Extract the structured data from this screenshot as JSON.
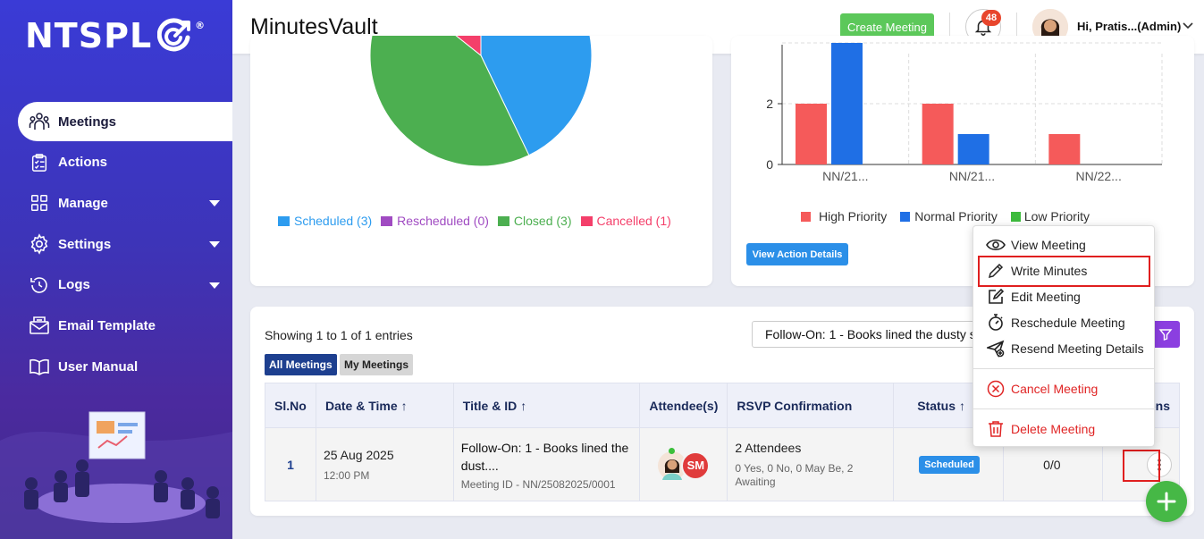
{
  "brand": {
    "logo_text": "NTSPL",
    "reg_mark": "®"
  },
  "sidebar": {
    "items": [
      {
        "label": "Meetings",
        "icon": "meetings-icon",
        "active": true
      },
      {
        "label": "Actions",
        "icon": "clipboard-icon"
      },
      {
        "label": "Manage",
        "icon": "grid-icon",
        "has_caret": true
      },
      {
        "label": "Settings",
        "icon": "gear-icon",
        "has_caret": true
      },
      {
        "label": "Logs",
        "icon": "history-icon",
        "has_caret": true
      },
      {
        "label": "Email Template",
        "icon": "envelope-icon"
      },
      {
        "label": "User Manual",
        "icon": "book-icon"
      }
    ]
  },
  "header": {
    "title": "MinutesVault",
    "create_label": "Create Meeting",
    "notifications_count": "48",
    "user_label": "Hi, Pratis...(Admin)"
  },
  "pie_card": {
    "legend": [
      {
        "label": "Scheduled (3)",
        "color": "#2d9cef"
      },
      {
        "label": "Rescheduled (0)",
        "color": "#a04bc2"
      },
      {
        "label": "Closed (3)",
        "color": "#4caf50"
      },
      {
        "label": "Cancelled (1)",
        "color": "#f43f6a"
      }
    ]
  },
  "bar_card": {
    "legend": [
      {
        "label": "High Priority",
        "color": "#f55a5a"
      },
      {
        "label": "Normal Priority",
        "color": "#1f6fe5"
      },
      {
        "label": "Low Priority",
        "color": "#3dbb3d"
      }
    ],
    "button_label": "View Action Details"
  },
  "chart_data": [
    {
      "type": "pie",
      "series": [
        {
          "name": "Scheduled",
          "value": 3,
          "color": "#2d9cef"
        },
        {
          "name": "Rescheduled",
          "value": 0,
          "color": "#a04bc2"
        },
        {
          "name": "Closed",
          "value": 3,
          "color": "#4caf50"
        },
        {
          "name": "Cancelled",
          "value": 1,
          "color": "#f43f6a"
        }
      ]
    },
    {
      "type": "bar",
      "categories": [
        "NN/21...",
        "NN/21...",
        "NN/22..."
      ],
      "series": [
        {
          "name": "High Priority",
          "values": [
            2,
            2,
            1
          ],
          "color": "#f55a5a"
        },
        {
          "name": "Normal Priority",
          "values": [
            4,
            1,
            0
          ],
          "color": "#1f6fe5"
        },
        {
          "name": "Low Priority",
          "values": [
            0,
            0,
            0
          ],
          "color": "#3dbb3d"
        }
      ],
      "yticks": [
        "0",
        "2"
      ],
      "ylim": [
        0,
        4
      ],
      "grid": true
    }
  ],
  "table_card": {
    "showing": "Showing 1 to 1 of 1 entries",
    "filter_value": "Follow-On: 1 - Books lined the dusty s",
    "tab_all": "All Meetings",
    "tab_my": "My Meetings",
    "columns": [
      "Sl.No",
      "Date & Time",
      "Title & ID",
      "Attendee(s)",
      "RSVP Confirmation",
      "Status",
      "",
      "Actions"
    ],
    "row": {
      "sl": "1",
      "date": "25 Aug 2025",
      "time": "12:00 PM",
      "title": "Follow-On: 1 - Books lined the dust....",
      "meeting_id": "Meeting ID - NN/25082025/0001",
      "attendee_initials": "SM",
      "rsvp_count": "2 Attendees",
      "rsvp_detail": "0 Yes, 0 No, 0 May Be, 2 Awaiting",
      "status": "Scheduled",
      "ratio": "0/0"
    }
  },
  "menu": {
    "items": [
      {
        "label": "View Meeting",
        "icon": "eye-icon"
      },
      {
        "label": "Write Minutes",
        "icon": "pencil-icon",
        "highlighted": true
      },
      {
        "label": "Edit Meeting",
        "icon": "edit-square-icon"
      },
      {
        "label": "Reschedule Meeting",
        "icon": "stopwatch-icon"
      },
      {
        "label": "Resend Meeting Details",
        "icon": "send-plus-icon"
      },
      {
        "label": "Cancel Meeting",
        "icon": "cancel-circle-icon",
        "danger": true
      },
      {
        "label": "Delete Meeting",
        "icon": "trash-icon",
        "danger": true
      }
    ]
  }
}
